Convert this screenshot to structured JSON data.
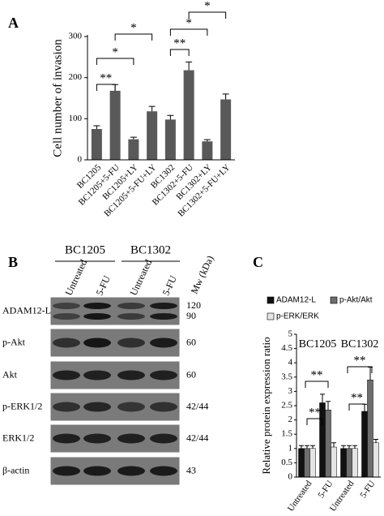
{
  "chart_data": [
    {
      "type": "bar",
      "panel": "A",
      "ylabel": "Cell number of invasion",
      "categories": [
        "BC1205",
        "BC1205+5-FU",
        "BC1205+LY",
        "BC1205+5-FU+LY",
        "BC1302",
        "BC1302+5-FU",
        "BC1302+LY",
        "BC1302+5-FU+LY"
      ],
      "values": [
        75,
        168,
        50,
        118,
        98,
        218,
        45,
        147
      ],
      "errors": [
        8,
        15,
        5,
        12,
        10,
        20,
        4,
        13
      ],
      "color": "#595959",
      "ylim": [
        0,
        300
      ],
      "yticks": [
        0,
        100,
        200,
        300
      ],
      "annotations": [
        "**",
        "*",
        "*",
        "**",
        "*",
        "*"
      ]
    },
    {
      "type": "grouped_bar",
      "panel": "C",
      "ylabel": "Relative protein expression ratio",
      "groups": [
        "BC1205",
        "BC1302"
      ],
      "categories": [
        "Untreated",
        "5-FU",
        "Untreated",
        "5-FU"
      ],
      "series": [
        {
          "name": "ADAM12-L",
          "color": "#111111",
          "values": [
            1,
            2.6,
            1,
            2.3
          ],
          "errors": [
            0.1,
            0.3,
            0.1,
            0.25
          ]
        },
        {
          "name": "p-Akt/Akt",
          "color": "#6e6e6e",
          "values": [
            1,
            2.35,
            1,
            3.4
          ],
          "errors": [
            0.1,
            0.3,
            0.1,
            0.45
          ]
        },
        {
          "name": "p-ERK/ERK",
          "color": "#e4e4e4",
          "values": [
            1,
            1.05,
            1,
            1.2
          ],
          "errors": [
            0.1,
            0.15,
            0.1,
            0.12
          ]
        }
      ],
      "ylim": [
        0,
        5
      ],
      "yticks": [
        0,
        0.5,
        1,
        1.5,
        2,
        2.5,
        3,
        3.5,
        4,
        4.5,
        5
      ],
      "annotations": [
        "**",
        "**",
        "**",
        "**"
      ],
      "legend": "top"
    }
  ],
  "blot": {
    "panel": "B",
    "cell_lines": [
      "BC1205",
      "BC1302"
    ],
    "lanes": [
      "Untreated",
      "5-FU",
      "Untreated",
      "5-FU"
    ],
    "mw_header": "Mw (kDa)",
    "rows": [
      {
        "label": "ADAM12-L",
        "mw": [
          "120",
          "90"
        ]
      },
      {
        "label": "p-Akt",
        "mw": [
          "60"
        ]
      },
      {
        "label": "Akt",
        "mw": [
          "60"
        ]
      },
      {
        "label": "p-ERK1/2",
        "mw": [
          "42/44"
        ]
      },
      {
        "label": "ERK1/2",
        "mw": [
          "42/44"
        ]
      },
      {
        "label": "β-actin",
        "mw": [
          "43"
        ]
      }
    ]
  }
}
